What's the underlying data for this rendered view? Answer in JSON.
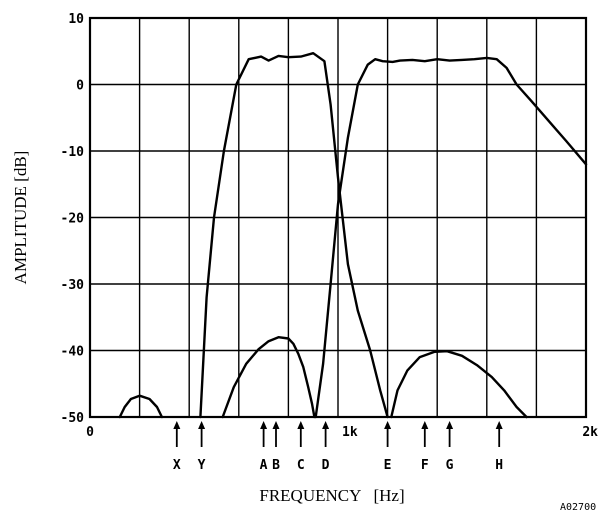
{
  "chart_data": {
    "type": "line",
    "xlabel": "FREQUENCY   [Hz]",
    "ylabel": "AMPLITUDE   [dB]",
    "xlim": [
      0,
      2000
    ],
    "ylim": [
      -50,
      10
    ],
    "grid": true,
    "x_ticks": [
      {
        "value": 0,
        "label": "0"
      },
      {
        "value": 1000,
        "label": "1k"
      },
      {
        "value": 2000,
        "label": "2k"
      }
    ],
    "y_ticks": [
      {
        "value": 10,
        "label": "10"
      },
      {
        "value": 0,
        "label": "0"
      },
      {
        "value": -10,
        "label": "-10"
      },
      {
        "value": -20,
        "label": "-20"
      },
      {
        "value": -30,
        "label": "-30"
      },
      {
        "value": -40,
        "label": "-40"
      },
      {
        "value": -50,
        "label": "-50"
      }
    ],
    "markers": [
      {
        "label": "X",
        "x": 350
      },
      {
        "label": "Y",
        "x": 450
      },
      {
        "label": "A",
        "x": 700
      },
      {
        "label": "B",
        "x": 750
      },
      {
        "label": "C",
        "x": 850
      },
      {
        "label": "D",
        "x": 950
      },
      {
        "label": "E",
        "x": 1200
      },
      {
        "label": "F",
        "x": 1350
      },
      {
        "label": "G",
        "x": 1450
      },
      {
        "label": "H",
        "x": 1650
      }
    ],
    "series": [
      {
        "x": [
          120,
          140,
          165,
          200,
          240,
          270,
          290
        ],
        "y": [
          -50,
          -48.5,
          -47.3,
          -46.8,
          -47.3,
          -48.5,
          -50
        ]
      },
      {
        "x": [
          445,
          470,
          500,
          540,
          590,
          640,
          690,
          720,
          760,
          800,
          850,
          900,
          945,
          970,
          1000,
          1040,
          1080,
          1130,
          1170,
          1200
        ],
        "y": [
          -50,
          -32,
          -20,
          -10,
          0,
          3.8,
          4.2,
          3.6,
          4.3,
          4.1,
          4.2,
          4.7,
          3.5,
          -3,
          -14,
          -27,
          -34,
          -40,
          -46,
          -50
        ]
      },
      {
        "x": [
          910,
          940,
          970,
          1000,
          1040,
          1080,
          1120,
          1150,
          1180,
          1220,
          1250,
          1300,
          1350,
          1400,
          1450,
          1500,
          1550,
          1600,
          1640,
          1680,
          1720,
          1780,
          1850,
          1920,
          2000
        ],
        "y": [
          -50,
          -42,
          -30,
          -18,
          -8,
          0,
          3,
          3.8,
          3.5,
          3.4,
          3.6,
          3.7,
          3.5,
          3.8,
          3.6,
          3.7,
          3.8,
          4,
          3.8,
          2.5,
          0,
          -2.5,
          -5.5,
          -8.5,
          -12
        ]
      },
      {
        "x": [
          535,
          580,
          630,
          680,
          720,
          760,
          800,
          820,
          840,
          860,
          880,
          895,
          905
        ],
        "y": [
          -50,
          -45.5,
          -42,
          -39.8,
          -38.6,
          -38,
          -38.2,
          -39,
          -40.5,
          -42.5,
          -45.5,
          -48,
          -50
        ]
      },
      {
        "x": [
          1215,
          1240,
          1280,
          1330,
          1390,
          1440,
          1500,
          1560,
          1620,
          1670,
          1720,
          1760
        ],
        "y": [
          -50,
          -46,
          -43,
          -41,
          -40.2,
          -40.1,
          -40.8,
          -42.2,
          -44,
          -46,
          -48.5,
          -50
        ]
      }
    ]
  },
  "corner_text": "A02700"
}
